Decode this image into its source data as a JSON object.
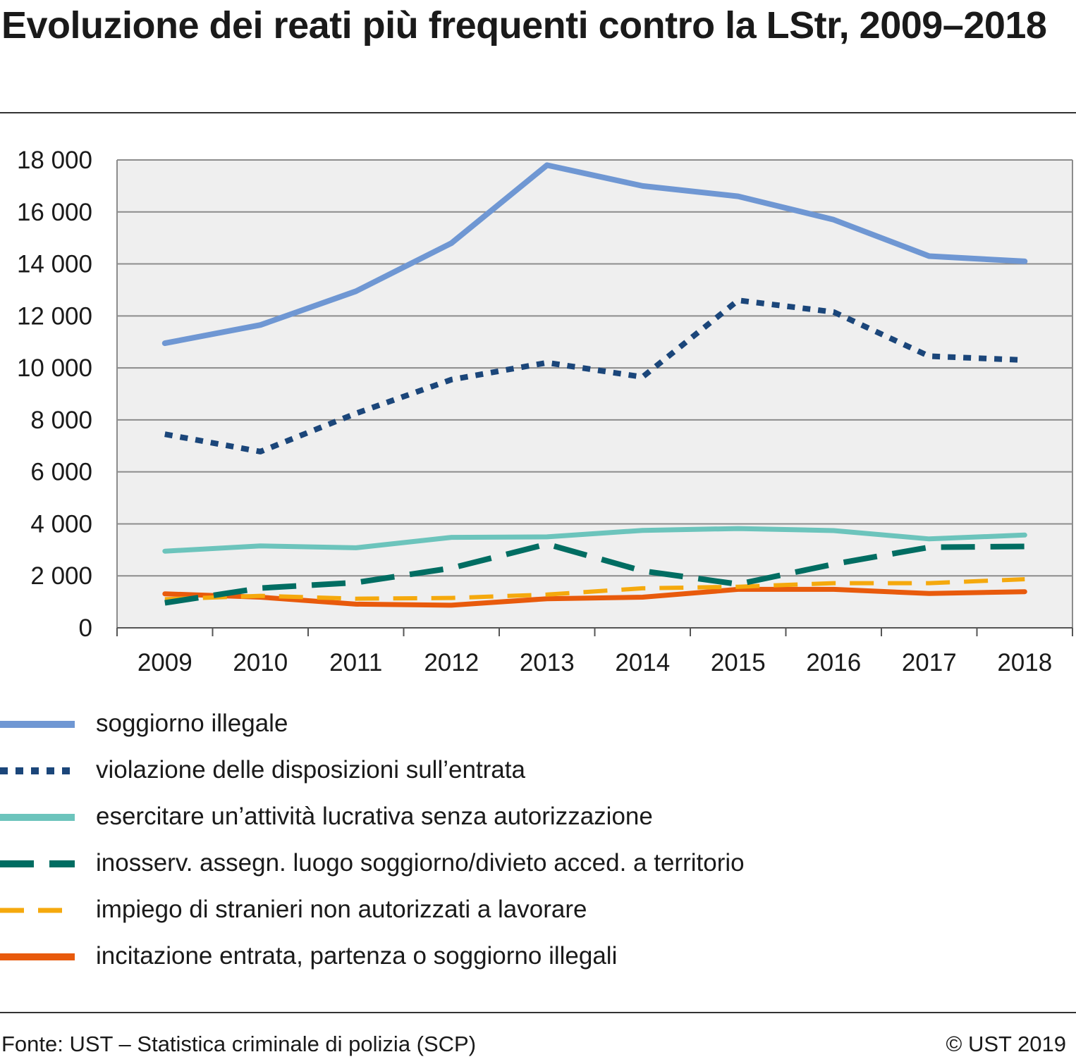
{
  "title": "Evoluzione dei reati più frequenti contro la LStr, 2009–2018",
  "source": "Fonte: UST – Statistica criminale di polizia (SCP)",
  "copyright": "© UST 2019",
  "chart_data": {
    "type": "line",
    "title": "Evoluzione dei reati più frequenti contro la LStr, 2009–2018",
    "xlabel": "",
    "ylabel": "",
    "ylim": [
      0,
      18000
    ],
    "yticks": [
      0,
      2000,
      4000,
      6000,
      8000,
      10000,
      12000,
      14000,
      16000,
      18000
    ],
    "ytick_labels": [
      "0",
      "2 000",
      "4 000",
      "6 000",
      "8 000",
      "10 000",
      "12 000",
      "14 000",
      "16 000",
      "18 000"
    ],
    "categories": [
      "2009",
      "2010",
      "2011",
      "2012",
      "2013",
      "2014",
      "2015",
      "2016",
      "2017",
      "2018"
    ],
    "grid": true,
    "legend_position": "bottom",
    "series": [
      {
        "name": "soggiorno illegale",
        "color": "#6f97d3",
        "style": "solid",
        "values": [
          10950,
          11650,
          12950,
          14800,
          17800,
          17000,
          16600,
          15700,
          14300,
          14100
        ]
      },
      {
        "name": "violazione delle disposizioni sull’entrata",
        "color": "#1b467a",
        "style": "dotted",
        "values": [
          7450,
          6780,
          8250,
          9550,
          10200,
          9650,
          12600,
          12150,
          10450,
          10300
        ]
      },
      {
        "name": "esercitare un’attività lucrativa senza autorizzazione",
        "color": "#6cc4bc",
        "style": "solid",
        "values": [
          2950,
          3150,
          3080,
          3480,
          3500,
          3750,
          3820,
          3740,
          3420,
          3570
        ]
      },
      {
        "name": "inosserv. assegn. luogo soggiorno/divieto acced. a territorio",
        "color": "#006d62",
        "style": "longdash",
        "values": [
          960,
          1530,
          1740,
          2300,
          3220,
          2190,
          1680,
          2450,
          3100,
          3130
        ]
      },
      {
        "name": "impiego di stranieri non autorizzati a lavorare",
        "color": "#f5a90d",
        "style": "dash",
        "values": [
          1100,
          1230,
          1120,
          1150,
          1280,
          1520,
          1580,
          1720,
          1720,
          1870
        ]
      },
      {
        "name": "incitazione entrata, partenza o soggiorno illegali",
        "color": "#e85a0c",
        "style": "solid",
        "values": [
          1310,
          1180,
          910,
          870,
          1120,
          1180,
          1480,
          1480,
          1320,
          1390
        ]
      }
    ]
  }
}
